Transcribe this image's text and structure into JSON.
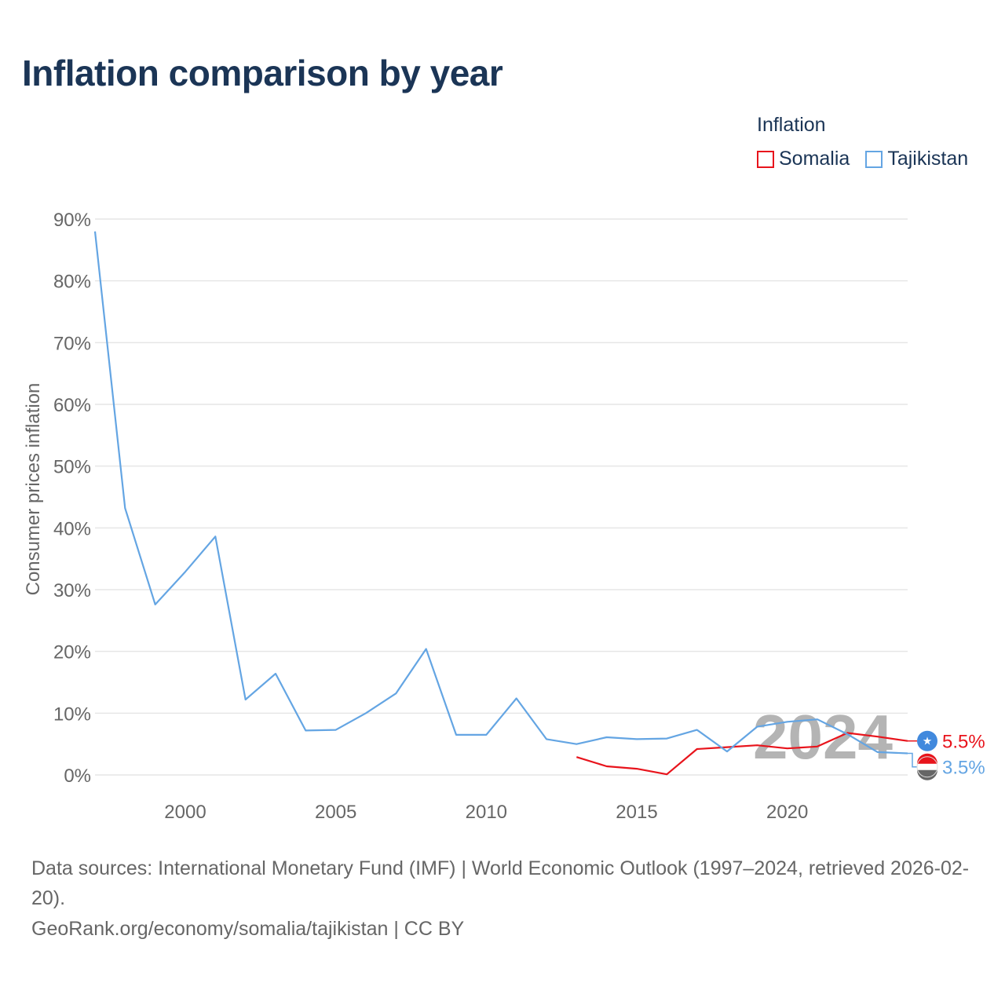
{
  "title": "Inflation comparison by year",
  "legend": {
    "title": "Inflation",
    "items": [
      {
        "name": "Somalia",
        "color": "#e8141c"
      },
      {
        "name": "Tajikistan",
        "color": "#64a5e3"
      }
    ]
  },
  "footer": {
    "sources": "Data sources: International Monetary Fund (IMF) | World Economic Outlook (1997–2024, retrieved 2026-02-20).",
    "credit": "GeoRank.org/economy/somalia/tajikistan | CC BY"
  },
  "chart_data": {
    "type": "line",
    "title": "Inflation comparison by year",
    "ylabel": "Consumer prices inflation",
    "xlabel": "",
    "xlim": [
      1997,
      2024
    ],
    "ylim": [
      0,
      90
    ],
    "y_ticks": [
      0,
      10,
      20,
      30,
      40,
      50,
      60,
      70,
      80,
      90
    ],
    "y_tick_labels": [
      "0%",
      "10%",
      "20%",
      "30%",
      "40%",
      "50%",
      "60%",
      "70%",
      "80%",
      "90%"
    ],
    "x_ticks": [
      2000,
      2005,
      2010,
      2015,
      2020
    ],
    "x_tick_labels": [
      "2000",
      "2005",
      "2010",
      "2015",
      "2020"
    ],
    "grid": true,
    "year_watermark": "2024",
    "series": [
      {
        "name": "Somalia",
        "color": "#e8141c",
        "end_label": "5.5%",
        "x": [
          2013,
          2014,
          2015,
          2016,
          2017,
          2018,
          2019,
          2020,
          2021,
          2022,
          2023,
          2024
        ],
        "values": [
          2.9,
          1.4,
          1.0,
          0.1,
          4.2,
          4.5,
          4.8,
          4.3,
          4.6,
          6.8,
          6.2,
          5.5
        ]
      },
      {
        "name": "Tajikistan",
        "color": "#64a5e3",
        "end_label": "3.5%",
        "x": [
          1997,
          1998,
          1999,
          2000,
          2001,
          2002,
          2003,
          2004,
          2005,
          2006,
          2007,
          2008,
          2009,
          2010,
          2011,
          2012,
          2013,
          2014,
          2015,
          2016,
          2017,
          2018,
          2019,
          2020,
          2021,
          2022,
          2023,
          2024
        ],
        "values": [
          88.0,
          43.2,
          27.6,
          32.9,
          38.6,
          12.2,
          16.4,
          7.2,
          7.3,
          10.0,
          13.2,
          20.4,
          6.5,
          6.5,
          12.4,
          5.8,
          5.0,
          6.1,
          5.8,
          5.9,
          7.3,
          3.8,
          7.8,
          8.6,
          9.0,
          6.6,
          3.7,
          3.5
        ]
      }
    ]
  }
}
